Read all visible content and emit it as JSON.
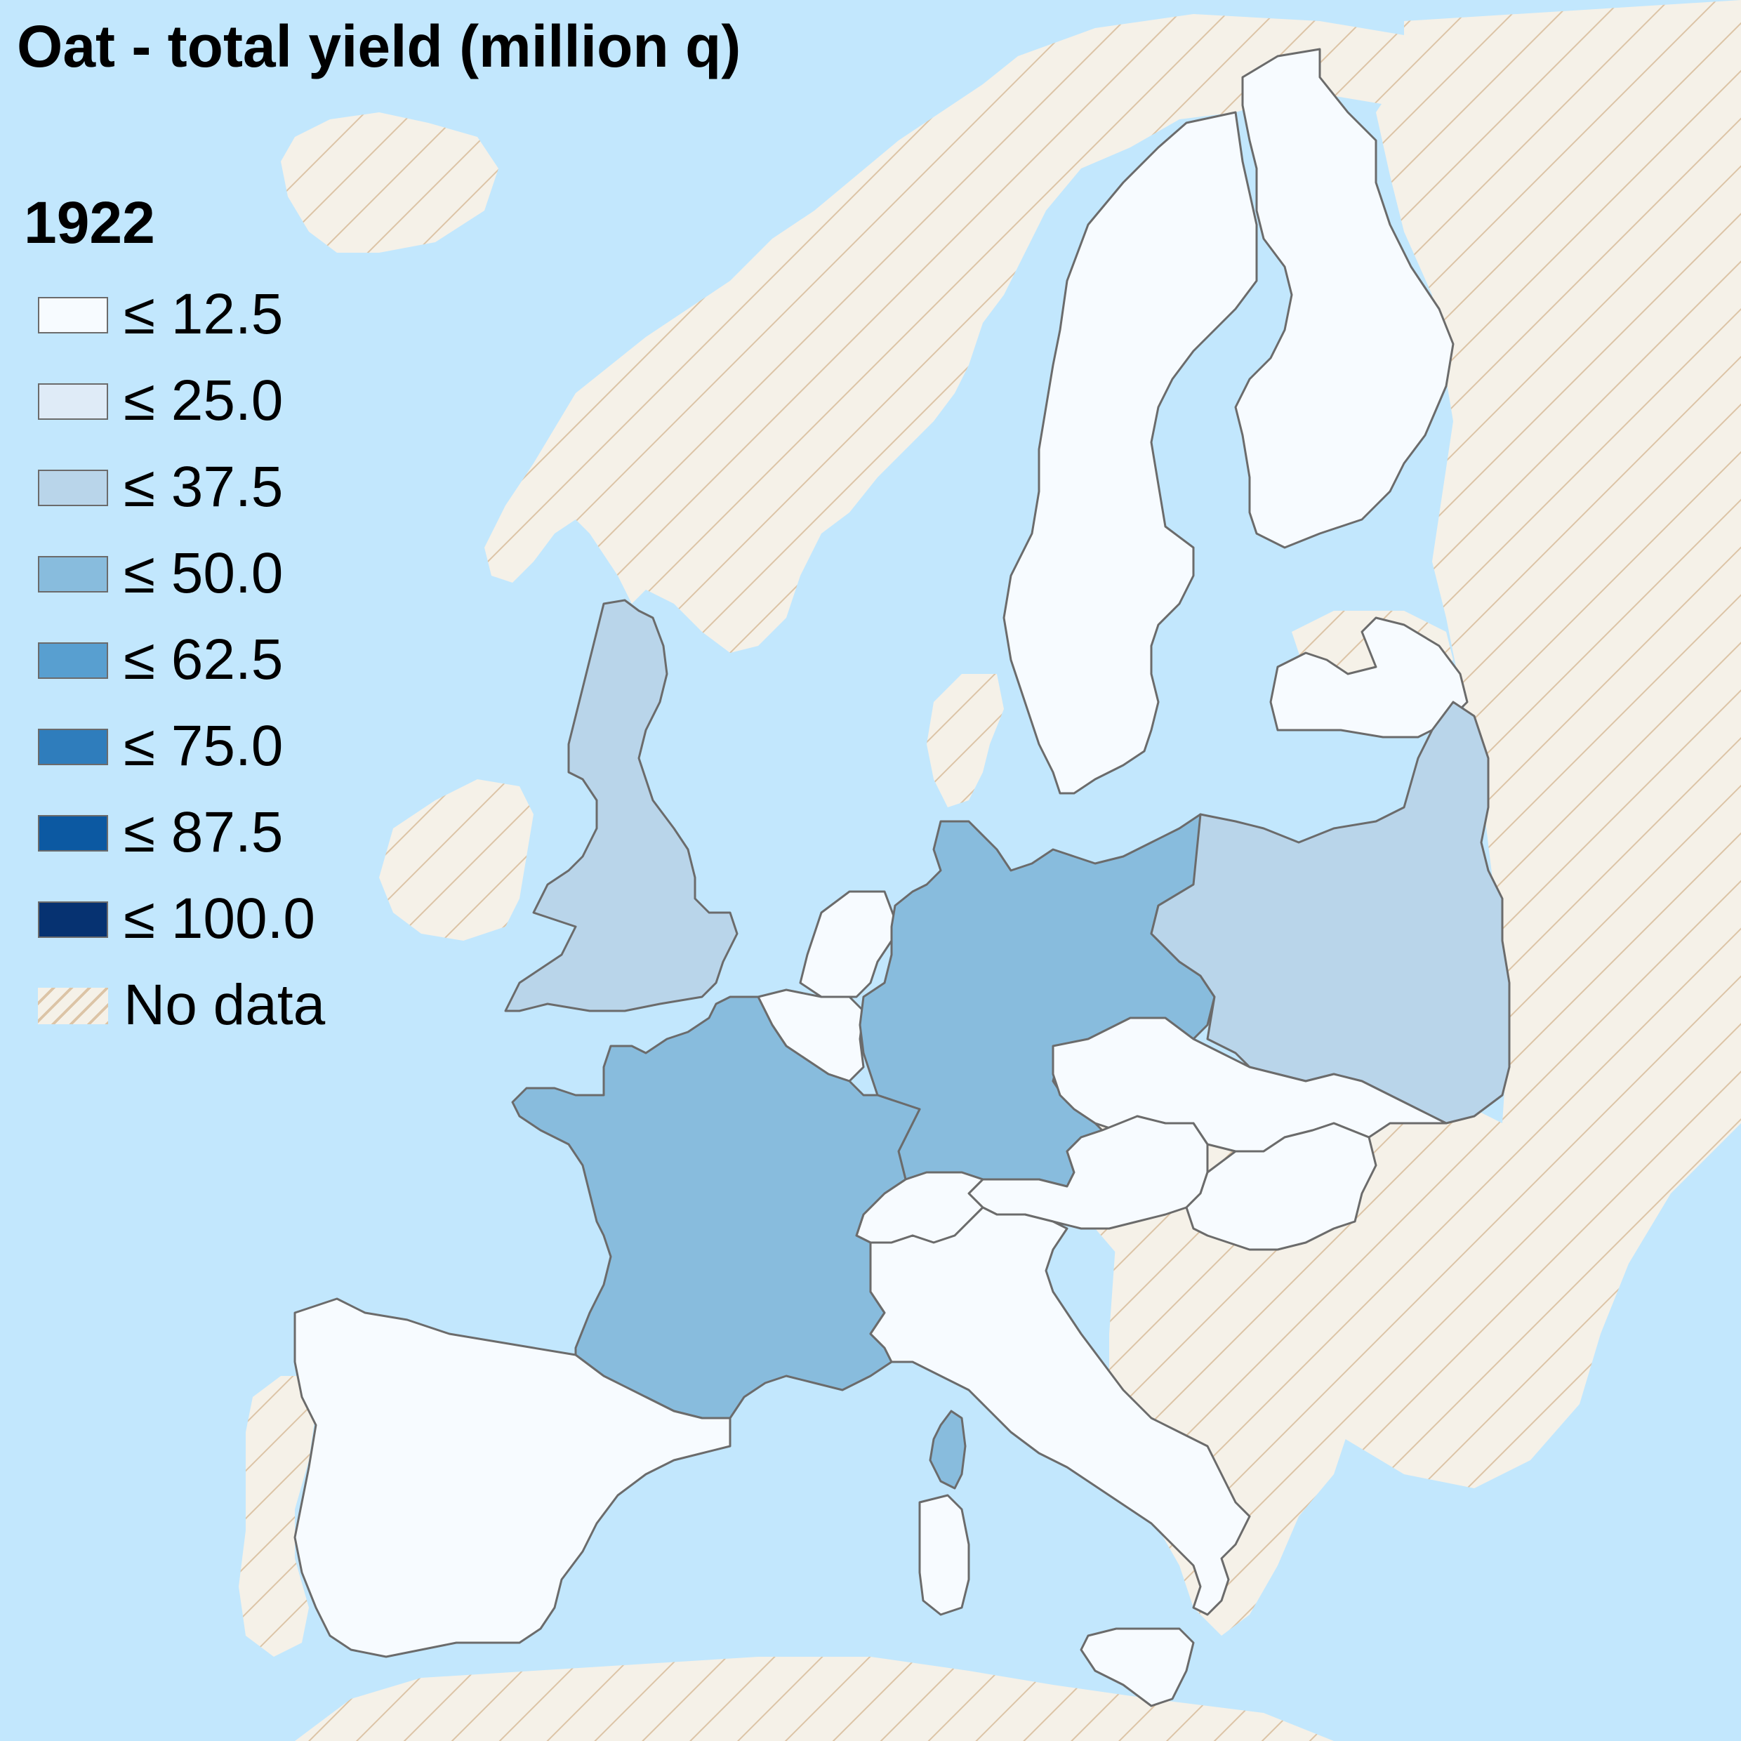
{
  "title": "Oat - total yield (million q)",
  "year": "1922",
  "colors": {
    "sea": "#c2e7fd",
    "nodata_bg": "#f5f1e8",
    "nodata_hatch": "#dcc4a6",
    "border": "#6b6b6b"
  },
  "legend": [
    {
      "label": "≤ 12.5",
      "color": "#f7fbff"
    },
    {
      "label": "≤ 25.0",
      "color": "#dfebf7"
    },
    {
      "label": "≤ 37.5",
      "color": "#b9d5ea"
    },
    {
      "label": "≤ 50.0",
      "color": "#88bcdd"
    },
    {
      "label": "≤ 62.5",
      "color": "#589fd0"
    },
    {
      "label": "≤ 75.0",
      "color": "#2f7dbc"
    },
    {
      "label": "≤ 87.5",
      "color": "#0c59a2"
    },
    {
      "label": "≤ 100.0",
      "color": "#063271"
    },
    {
      "label": "No data",
      "color": "hatch"
    }
  ],
  "countries": [
    {
      "name": "Sweden",
      "class": "≤ 12.5"
    },
    {
      "name": "Finland",
      "class": "≤ 12.5"
    },
    {
      "name": "Latvia",
      "class": "≤ 12.5"
    },
    {
      "name": "United Kingdom",
      "class": "≤ 37.5"
    },
    {
      "name": "Poland",
      "class": "≤ 37.5"
    },
    {
      "name": "Germany",
      "class": "≤ 50.0"
    },
    {
      "name": "France",
      "class": "≤ 50.0"
    },
    {
      "name": "Corsica",
      "class": "≤ 50.0"
    },
    {
      "name": "Netherlands",
      "class": "≤ 12.5"
    },
    {
      "name": "Belgium",
      "class": "≤ 12.5"
    },
    {
      "name": "Czechoslovakia",
      "class": "≤ 12.5"
    },
    {
      "name": "Austria",
      "class": "≤ 12.5"
    },
    {
      "name": "Hungary",
      "class": "≤ 12.5"
    },
    {
      "name": "Switzerland",
      "class": "≤ 12.5"
    },
    {
      "name": "Italy",
      "class": "≤ 12.5"
    },
    {
      "name": "Spain",
      "class": "≤ 12.5"
    }
  ]
}
